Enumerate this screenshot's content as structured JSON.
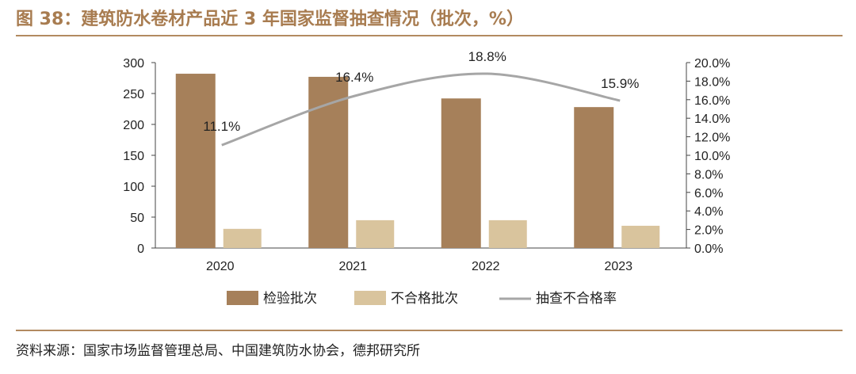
{
  "header": {
    "title": "图 38：建筑防水卷材产品近 3 年国家监督抽查情况（批次，%）"
  },
  "footer": {
    "source": "资料来源：国家市场监督管理总局、中国建筑防水协会，德邦研究所"
  },
  "chart_data": {
    "type": "bar",
    "categories": [
      "2020",
      "2021",
      "2022",
      "2023"
    ],
    "series": [
      {
        "name": "检验批次",
        "type": "bar",
        "axis": "left",
        "color": "#a6805a",
        "values": [
          282,
          277,
          242,
          228
        ]
      },
      {
        "name": "不合格批次",
        "type": "bar",
        "axis": "left",
        "color": "#d9c49d",
        "values": [
          31,
          45,
          45,
          36
        ]
      },
      {
        "name": "抽查不合格率",
        "type": "line",
        "axis": "right",
        "color": "#a6a6a6",
        "values": [
          11.1,
          16.4,
          18.8,
          15.9
        ],
        "labels": [
          "11.1%",
          "16.4%",
          "18.8%",
          "15.9%"
        ]
      }
    ],
    "y_left": {
      "min": 0,
      "max": 300,
      "ticks": [
        "0",
        "50",
        "100",
        "150",
        "200",
        "250",
        "300"
      ]
    },
    "y_right": {
      "min": 0,
      "max": 20,
      "ticks": [
        "0.0%",
        "2.0%",
        "4.0%",
        "6.0%",
        "8.0%",
        "10.0%",
        "12.0%",
        "14.0%",
        "16.0%",
        "18.0%",
        "20.0%"
      ]
    },
    "grid": false,
    "legend_position": "bottom"
  }
}
